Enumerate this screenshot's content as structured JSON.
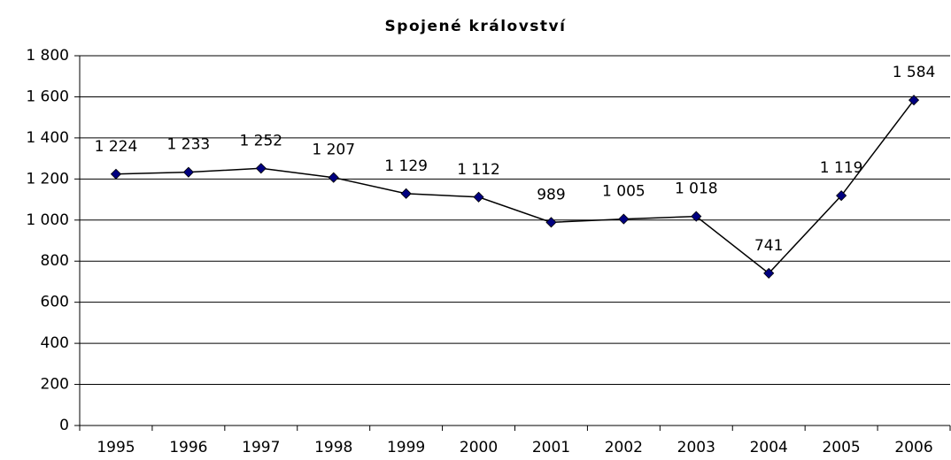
{
  "chart_data": {
    "type": "line",
    "title": "Spojené království",
    "categories": [
      "1995",
      "1996",
      "1997",
      "1998",
      "1999",
      "2000",
      "2001",
      "2002",
      "2003",
      "2004",
      "2005",
      "2006"
    ],
    "series": [
      {
        "name": "Spojené království",
        "color": "#000080",
        "values": [
          1224,
          1233,
          1252,
          1207,
          1129,
          1112,
          989,
          1005,
          1018,
          741,
          1119,
          1584
        ],
        "value_labels": [
          "1 224",
          "1 233",
          "1 252",
          "1 207",
          "1 129",
          "1 112",
          "989",
          "1 005",
          "1 018",
          "741",
          "1 119",
          "1 584"
        ]
      }
    ],
    "ylim": [
      0,
      1800
    ],
    "yticks": [
      0,
      200,
      400,
      600,
      800,
      {
        "value": 1000,
        "label": "1 000"
      },
      {
        "value": 1200,
        "label": "1 200"
      },
      {
        "value": 1400,
        "label": "1 400"
      },
      {
        "value": 1600,
        "label": "1 600"
      },
      {
        "value": 1800,
        "label": "1 800"
      }
    ],
    "grid": true
  }
}
